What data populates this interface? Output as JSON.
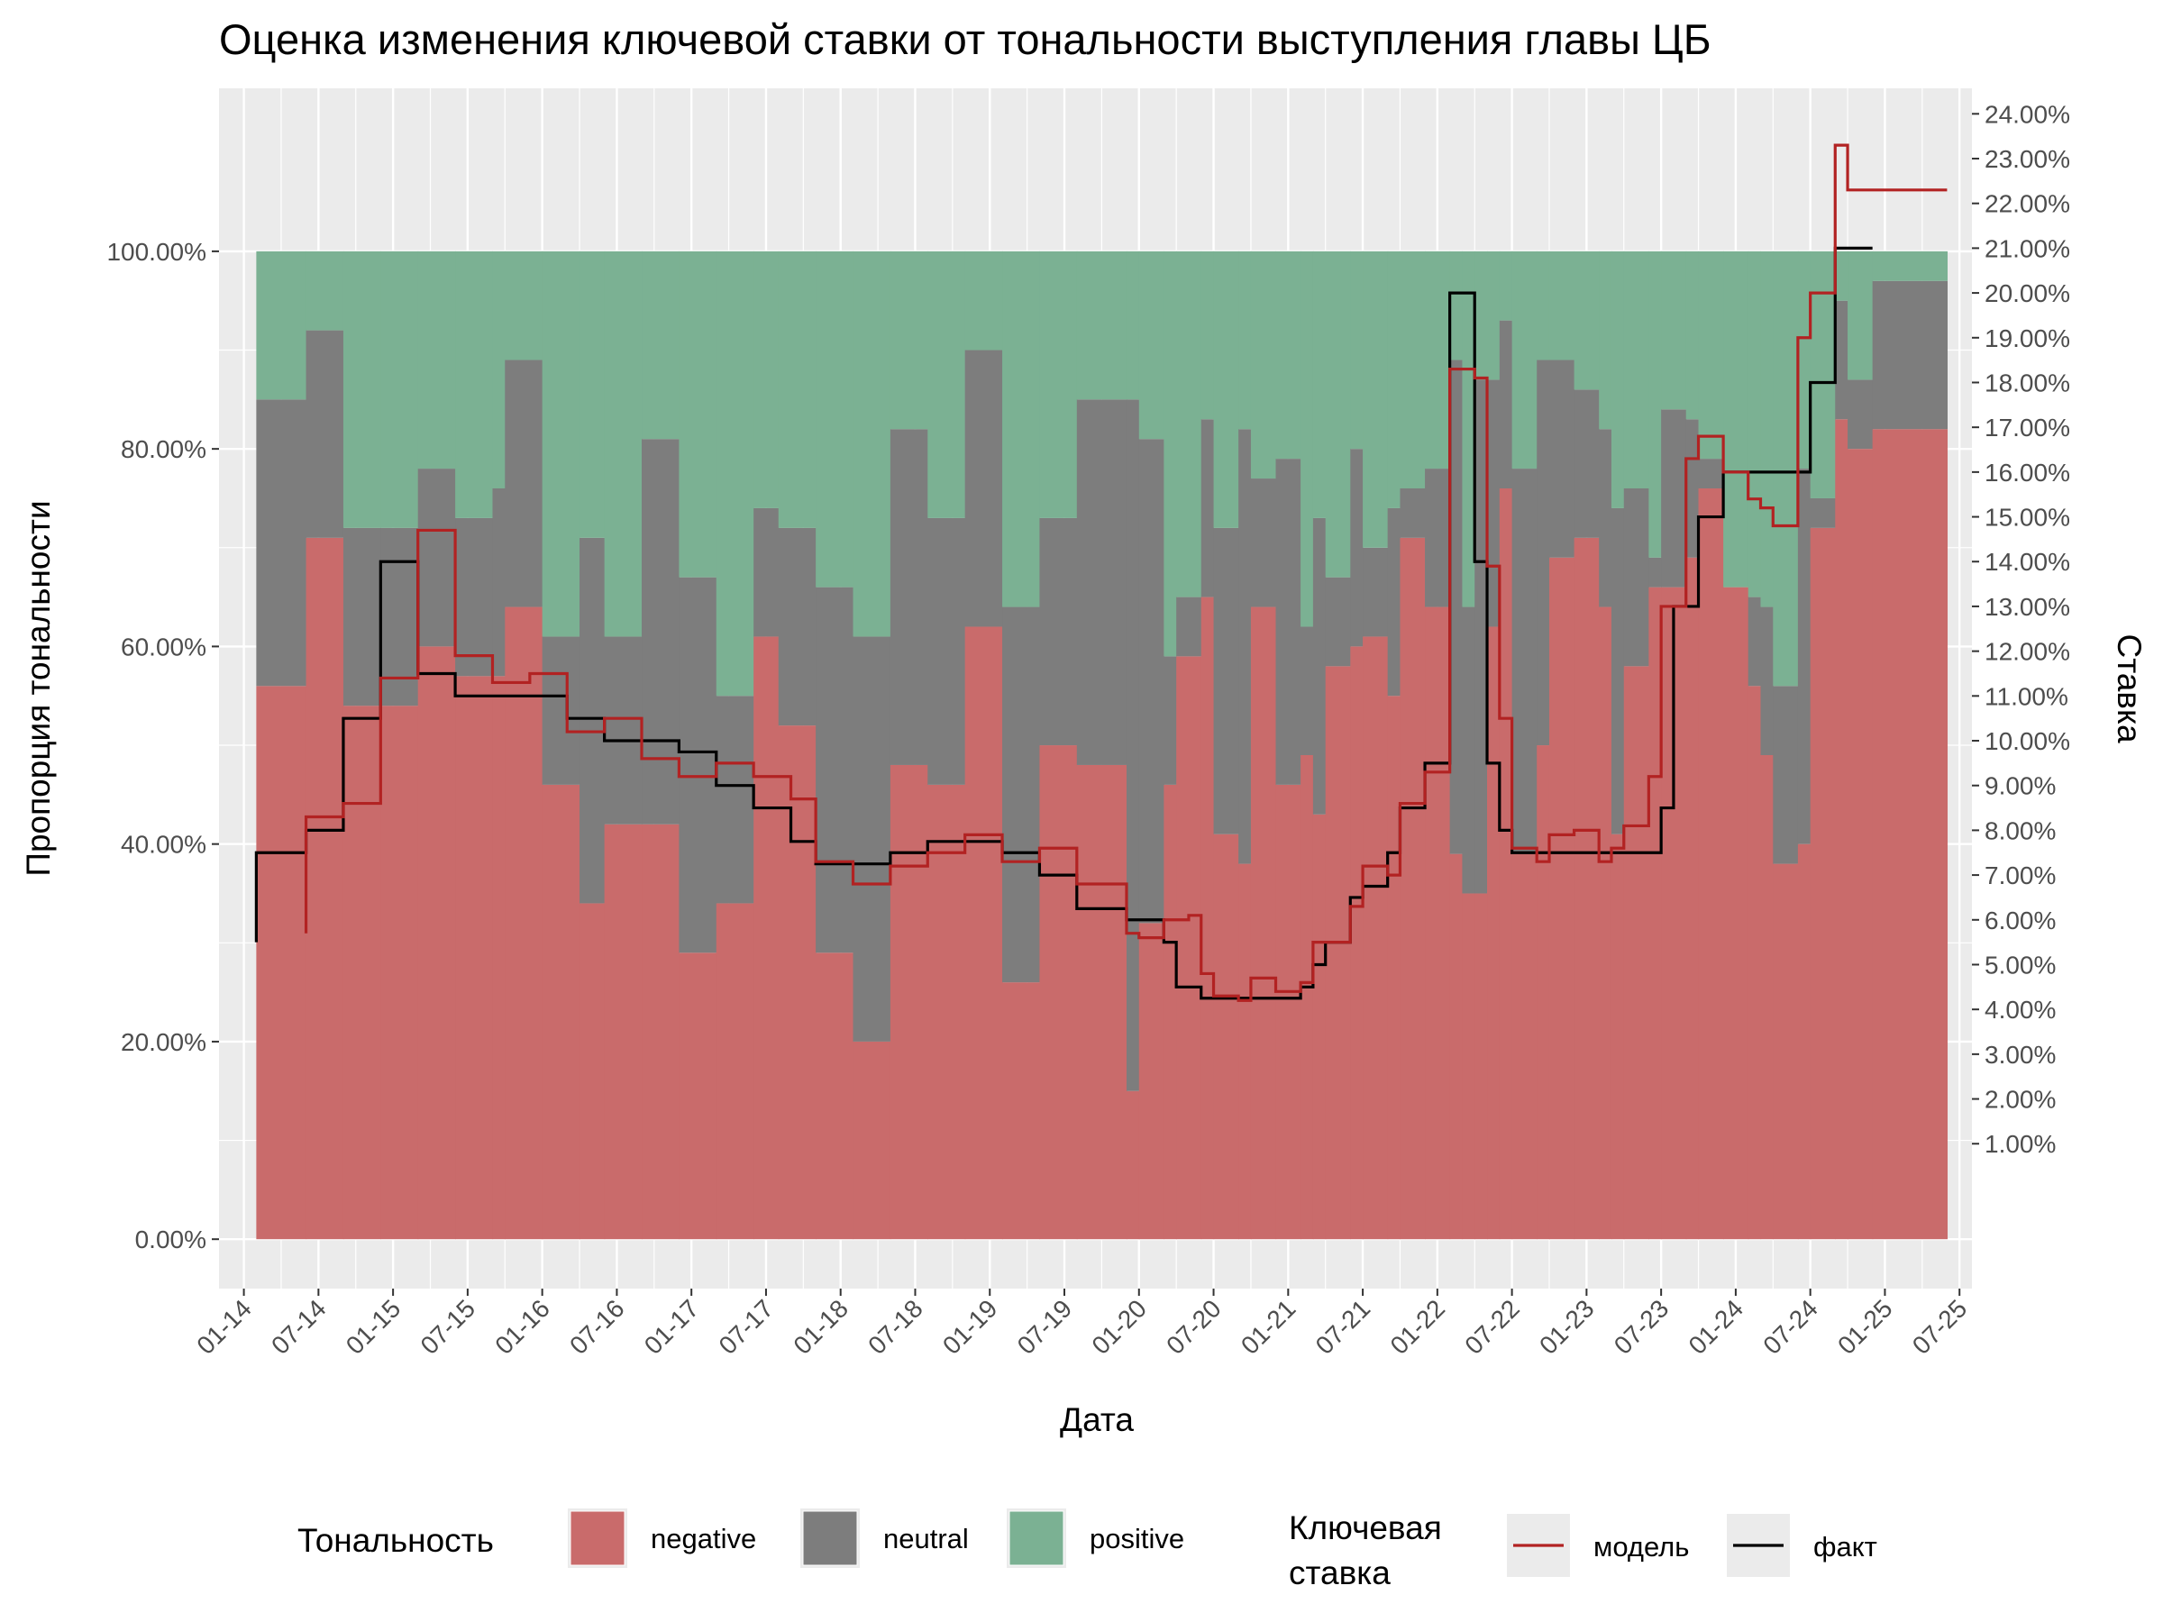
{
  "chart_data": {
    "type": "area",
    "title": "Оценка изменения ключевой ставки от тональности выступления главы ЦБ",
    "xlabel": "Дата",
    "ylabel": "Пропорция тональности",
    "y2label": "Ставка",
    "xlim": [
      "2013-11",
      "2025-08"
    ],
    "ylim": [
      -0.05,
      1.165
    ],
    "y2lim": [
      -2.235,
      24.57
    ],
    "grid": true,
    "x_ticks": [
      "01-14",
      "07-14",
      "01-15",
      "07-15",
      "01-16",
      "07-16",
      "01-17",
      "07-17",
      "01-18",
      "07-18",
      "01-19",
      "07-19",
      "01-20",
      "07-20",
      "01-21",
      "07-21",
      "01-22",
      "07-22",
      "01-23",
      "07-23",
      "01-24",
      "07-24",
      "01-25",
      "07-25"
    ],
    "y_ticks": [
      "0.00%",
      "20.00%",
      "40.00%",
      "60.00%",
      "80.00%",
      "100.00%"
    ],
    "y2_ticks": [
      "1.00%",
      "2.00%",
      "3.00%",
      "4.00%",
      "5.00%",
      "6.00%",
      "7.00%",
      "8.00%",
      "9.00%",
      "10.00%",
      "11.00%",
      "12.00%",
      "13.00%",
      "14.00%",
      "15.00%",
      "16.00%",
      "17.00%",
      "18.00%",
      "19.00%",
      "20.00%",
      "21.00%",
      "22.00%",
      "23.00%",
      "24.00%"
    ],
    "tone_series": [
      {
        "name": "negative",
        "color": "#c96b6b"
      },
      {
        "name": "neutral",
        "color": "#7d7d7d"
      },
      {
        "name": "positive",
        "color": "#7bb193"
      }
    ],
    "tone_periods": [
      {
        "start": "2014-02",
        "negative": 0.56,
        "neutral": 0.29
      },
      {
        "start": "2014-06",
        "negative": 0.71,
        "neutral": 0.21
      },
      {
        "start": "2014-09",
        "negative": 0.54,
        "neutral": 0.18
      },
      {
        "start": "2014-12",
        "negative": 0.54,
        "neutral": 0.18
      },
      {
        "start": "2015-03",
        "negative": 0.6,
        "neutral": 0.18
      },
      {
        "start": "2015-06",
        "negative": 0.57,
        "neutral": 0.16
      },
      {
        "start": "2015-09",
        "negative": 0.57,
        "neutral": 0.19
      },
      {
        "start": "2015-10",
        "negative": 0.64,
        "neutral": 0.25
      },
      {
        "start": "2016-01",
        "negative": 0.46,
        "neutral": 0.15
      },
      {
        "start": "2016-04",
        "negative": 0.34,
        "neutral": 0.37
      },
      {
        "start": "2016-06",
        "negative": 0.42,
        "neutral": 0.19
      },
      {
        "start": "2016-09",
        "negative": 0.42,
        "neutral": 0.39
      },
      {
        "start": "2016-12",
        "negative": 0.29,
        "neutral": 0.38
      },
      {
        "start": "2017-03",
        "negative": 0.34,
        "neutral": 0.21
      },
      {
        "start": "2017-06",
        "negative": 0.61,
        "neutral": 0.13
      },
      {
        "start": "2017-08",
        "negative": 0.52,
        "neutral": 0.2
      },
      {
        "start": "2017-11",
        "negative": 0.29,
        "neutral": 0.37
      },
      {
        "start": "2018-02",
        "negative": 0.2,
        "neutral": 0.41
      },
      {
        "start": "2018-05",
        "negative": 0.48,
        "neutral": 0.34
      },
      {
        "start": "2018-08",
        "negative": 0.46,
        "neutral": 0.27
      },
      {
        "start": "2018-11",
        "negative": 0.62,
        "neutral": 0.28
      },
      {
        "start": "2019-02",
        "negative": 0.26,
        "neutral": 0.38
      },
      {
        "start": "2019-05",
        "negative": 0.5,
        "neutral": 0.23
      },
      {
        "start": "2019-08",
        "negative": 0.48,
        "neutral": 0.37
      },
      {
        "start": "2019-12",
        "negative": 0.15,
        "neutral": 0.7
      },
      {
        "start": "2020-01",
        "negative": 0.32,
        "neutral": 0.49
      },
      {
        "start": "2020-03",
        "negative": 0.46,
        "neutral": 0.13
      },
      {
        "start": "2020-04",
        "negative": 0.59,
        "neutral": 0.06
      },
      {
        "start": "2020-06",
        "negative": 0.65,
        "neutral": 0.18
      },
      {
        "start": "2020-07",
        "negative": 0.41,
        "neutral": 0.31
      },
      {
        "start": "2020-09",
        "negative": 0.38,
        "neutral": 0.44
      },
      {
        "start": "2020-10",
        "negative": 0.64,
        "neutral": 0.13
      },
      {
        "start": "2020-12",
        "negative": 0.46,
        "neutral": 0.33
      },
      {
        "start": "2021-02",
        "negative": 0.49,
        "neutral": 0.13
      },
      {
        "start": "2021-03",
        "negative": 0.43,
        "neutral": 0.3
      },
      {
        "start": "2021-04",
        "negative": 0.58,
        "neutral": 0.09
      },
      {
        "start": "2021-06",
        "negative": 0.6,
        "neutral": 0.2
      },
      {
        "start": "2021-07",
        "negative": 0.61,
        "neutral": 0.09
      },
      {
        "start": "2021-09",
        "negative": 0.55,
        "neutral": 0.19
      },
      {
        "start": "2021-10",
        "negative": 0.71,
        "neutral": 0.05
      },
      {
        "start": "2021-12",
        "negative": 0.64,
        "neutral": 0.14
      },
      {
        "start": "2022-02",
        "negative": 0.39,
        "neutral": 0.5
      },
      {
        "start": "2022-03",
        "negative": 0.35,
        "neutral": 0.29
      },
      {
        "start": "2022-04",
        "negative": 0.35,
        "neutral": 0.52
      },
      {
        "start": "2022-05",
        "negative": 0.62,
        "neutral": 0.25
      },
      {
        "start": "2022-06",
        "negative": 0.76,
        "neutral": 0.17
      },
      {
        "start": "2022-07",
        "negative": 0.39,
        "neutral": 0.39
      },
      {
        "start": "2022-09",
        "negative": 0.5,
        "neutral": 0.39
      },
      {
        "start": "2022-10",
        "negative": 0.69,
        "neutral": 0.2
      },
      {
        "start": "2022-12",
        "negative": 0.71,
        "neutral": 0.15
      },
      {
        "start": "2023-02",
        "negative": 0.64,
        "neutral": 0.18
      },
      {
        "start": "2023-03",
        "negative": 0.41,
        "neutral": 0.33
      },
      {
        "start": "2023-04",
        "negative": 0.58,
        "neutral": 0.18
      },
      {
        "start": "2023-06",
        "negative": 0.66,
        "neutral": 0.03
      },
      {
        "start": "2023-07",
        "negative": 0.66,
        "neutral": 0.18
      },
      {
        "start": "2023-09",
        "negative": 0.69,
        "neutral": 0.14
      },
      {
        "start": "2023-10",
        "negative": 0.76,
        "neutral": 0.03
      },
      {
        "start": "2023-12",
        "negative": 0.66,
        "neutral": 0.0
      },
      {
        "start": "2024-02",
        "negative": 0.56,
        "neutral": 0.09
      },
      {
        "start": "2024-03",
        "negative": 0.49,
        "neutral": 0.15
      },
      {
        "start": "2024-04",
        "negative": 0.38,
        "neutral": 0.18
      },
      {
        "start": "2024-06",
        "negative": 0.4,
        "neutral": 0.38
      },
      {
        "start": "2024-07",
        "negative": 0.72,
        "neutral": 0.03
      },
      {
        "start": "2024-09",
        "negative": 0.83,
        "neutral": 0.12
      },
      {
        "start": "2024-10",
        "negative": 0.8,
        "neutral": 0.07
      },
      {
        "start": "2024-12",
        "negative": 0.82,
        "neutral": 0.15
      }
    ],
    "tone_end": "2025-06",
    "rate_series": [
      {
        "name": "модель",
        "color": "#b22222",
        "points": [
          [
            "2014-06",
            5.7
          ],
          [
            "2014-06",
            8.3
          ],
          [
            "2014-09",
            8.6
          ],
          [
            "2014-12",
            11.4
          ],
          [
            "2015-03",
            14.7
          ],
          [
            "2015-06",
            11.9
          ],
          [
            "2015-09",
            11.3
          ],
          [
            "2015-12",
            11.5
          ],
          [
            "2016-03",
            10.2
          ],
          [
            "2016-06",
            10.5
          ],
          [
            "2016-09",
            9.6
          ],
          [
            "2016-12",
            9.2
          ],
          [
            "2017-03",
            9.5
          ],
          [
            "2017-06",
            9.2
          ],
          [
            "2017-09",
            8.7
          ],
          [
            "2017-11",
            7.3
          ],
          [
            "2018-02",
            6.8
          ],
          [
            "2018-05",
            7.2
          ],
          [
            "2018-08",
            7.5
          ],
          [
            "2018-11",
            7.9
          ],
          [
            "2019-02",
            7.3
          ],
          [
            "2019-05",
            7.6
          ],
          [
            "2019-08",
            6.8
          ],
          [
            "2019-12",
            5.7
          ],
          [
            "2020-01",
            5.6
          ],
          [
            "2020-03",
            6.0
          ],
          [
            "2020-05",
            6.1
          ],
          [
            "2020-06",
            4.8
          ],
          [
            "2020-07",
            4.3
          ],
          [
            "2020-09",
            4.2
          ],
          [
            "2020-10",
            4.7
          ],
          [
            "2020-12",
            4.4
          ],
          [
            "2021-02",
            4.6
          ],
          [
            "2021-03",
            5.5
          ],
          [
            "2021-06",
            6.3
          ],
          [
            "2021-07",
            7.2
          ],
          [
            "2021-09",
            7.0
          ],
          [
            "2021-10",
            8.6
          ],
          [
            "2021-12",
            9.3
          ],
          [
            "2022-02",
            11.0
          ],
          [
            "2022-02",
            18.3
          ],
          [
            "2022-04",
            18.1
          ],
          [
            "2022-05",
            13.9
          ],
          [
            "2022-06",
            10.5
          ],
          [
            "2022-07",
            7.6
          ],
          [
            "2022-09",
            7.3
          ],
          [
            "2022-10",
            7.9
          ],
          [
            "2022-12",
            8.0
          ],
          [
            "2023-02",
            7.3
          ],
          [
            "2023-03",
            7.6
          ],
          [
            "2023-04",
            8.1
          ],
          [
            "2023-06",
            9.2
          ],
          [
            "2023-07",
            13.0
          ],
          [
            "2023-09",
            16.3
          ],
          [
            "2023-10",
            16.8
          ],
          [
            "2023-12",
            16.0
          ],
          [
            "2024-02",
            15.4
          ],
          [
            "2024-03",
            15.2
          ],
          [
            "2024-04",
            14.8
          ],
          [
            "2024-06",
            19.0
          ],
          [
            "2024-07",
            20.0
          ],
          [
            "2024-09",
            23.3
          ],
          [
            "2024-10",
            22.3
          ],
          [
            "2025-06",
            22.3
          ]
        ]
      },
      {
        "name": "факт",
        "color": "#000000",
        "points": [
          [
            "2014-02",
            5.5
          ],
          [
            "2014-02",
            7.5
          ],
          [
            "2014-06",
            8.0
          ],
          [
            "2014-09",
            10.5
          ],
          [
            "2014-12",
            14.0
          ],
          [
            "2015-03",
            11.5
          ],
          [
            "2015-06",
            11.0
          ],
          [
            "2016-01",
            11.0
          ],
          [
            "2016-03",
            10.5
          ],
          [
            "2016-06",
            10.0
          ],
          [
            "2016-09",
            10.0
          ],
          [
            "2016-12",
            9.75
          ],
          [
            "2017-03",
            9.0
          ],
          [
            "2017-06",
            8.5
          ],
          [
            "2017-09",
            7.75
          ],
          [
            "2017-11",
            7.25
          ],
          [
            "2018-02",
            7.25
          ],
          [
            "2018-05",
            7.5
          ],
          [
            "2018-08",
            7.75
          ],
          [
            "2018-11",
            7.75
          ],
          [
            "2019-02",
            7.5
          ],
          [
            "2019-05",
            7.0
          ],
          [
            "2019-08",
            6.25
          ],
          [
            "2019-12",
            6.0
          ],
          [
            "2020-01",
            6.0
          ],
          [
            "2020-03",
            5.5
          ],
          [
            "2020-04",
            4.5
          ],
          [
            "2020-06",
            4.25
          ],
          [
            "2020-07",
            4.25
          ],
          [
            "2020-12",
            4.25
          ],
          [
            "2021-02",
            4.5
          ],
          [
            "2021-03",
            5.0
          ],
          [
            "2021-04",
            5.5
          ],
          [
            "2021-06",
            6.5
          ],
          [
            "2021-07",
            6.75
          ],
          [
            "2021-09",
            7.5
          ],
          [
            "2021-10",
            8.5
          ],
          [
            "2021-12",
            9.5
          ],
          [
            "2022-02",
            11.0
          ],
          [
            "2022-02",
            20.0
          ],
          [
            "2022-04",
            14.0
          ],
          [
            "2022-05",
            9.5
          ],
          [
            "2022-06",
            8.0
          ],
          [
            "2022-07",
            7.5
          ],
          [
            "2023-06",
            7.5
          ],
          [
            "2023-07",
            8.5
          ],
          [
            "2023-08",
            13.0
          ],
          [
            "2023-10",
            15.0
          ],
          [
            "2023-12",
            16.0
          ],
          [
            "2024-07",
            18.0
          ],
          [
            "2024-09",
            21.0
          ],
          [
            "2024-12",
            21.0
          ]
        ]
      }
    ],
    "legend": {
      "position": "bottom",
      "tone_title": "Тональность",
      "tone_items": [
        "negative",
        "neutral",
        "positive"
      ],
      "rate_title_line1": "Ключевая",
      "rate_title_line2": "ставка",
      "rate_items": [
        "модель",
        "факт"
      ]
    }
  }
}
